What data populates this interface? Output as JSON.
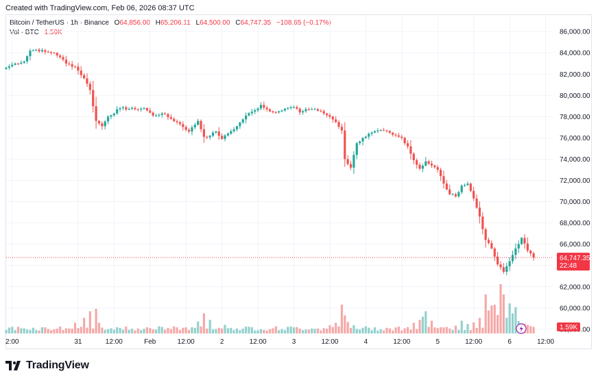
{
  "header": {
    "created_text": "Created with TradingView.com, Feb 06, 2026 08:37 UTC"
  },
  "legend": {
    "symbol": "Bitcoin / TetherUS · 1h · Binance",
    "o_label": "O",
    "o_value": "64,856.00",
    "h_label": "H",
    "h_value": "65,206.11",
    "l_label": "L",
    "l_value": "64,500.00",
    "c_label": "C",
    "c_value": "64,747.35",
    "change": "−108.65 (−0.17%)",
    "vol_label": "Vol · BTC",
    "vol_value": "1.59K"
  },
  "price_tag": {
    "value": "64,747.35",
    "countdown": "22:48"
  },
  "volume_tag": "1.59K",
  "brand": {
    "name": "TradingView"
  },
  "colors": {
    "up": "#26a69a",
    "down": "#ef5350",
    "vol_up": "#93d1cc",
    "vol_down": "#f5a9a8",
    "grid": "#f0f3fa",
    "price_line": "#f23645"
  },
  "chart_data": {
    "type": "candlestick",
    "title": "Bitcoin / TetherUS · 1h · Binance",
    "ylim": [
      59000,
      87000
    ],
    "y_ticks": [
      "86,000.00",
      "84,000.00",
      "82,000.00",
      "80,000.00",
      "78,000.00",
      "76,000.00",
      "74,000.00",
      "72,000.00",
      "70,000.00",
      "68,000.00",
      "66,000.00",
      "64,000.00",
      "62,000.00",
      "60,000.00",
      "58,000.00"
    ],
    "y_tick_values": [
      86000,
      84000,
      82000,
      80000,
      78000,
      76000,
      74000,
      72000,
      70000,
      68000,
      66000,
      64000,
      62000,
      60000,
      58000
    ],
    "x_ticks": [
      "2:00",
      "31",
      "12:00",
      "Feb",
      "12:00",
      "2",
      "12:00",
      "3",
      "12:00",
      "4",
      "12:00",
      "5",
      "12:00",
      "6",
      "12:00"
    ],
    "x_tick_hours": [
      2,
      24,
      36,
      48,
      60,
      72,
      84,
      96,
      108,
      120,
      132,
      144,
      156,
      168,
      180
    ],
    "last_price": 64747.35,
    "start": "Jan 30 00:00",
    "anchors": [
      [
        0,
        82600
      ],
      [
        3,
        83000
      ],
      [
        6,
        83200
      ],
      [
        8,
        84200
      ],
      [
        10,
        84300
      ],
      [
        13,
        84100
      ],
      [
        16,
        84000
      ],
      [
        18,
        83600
      ],
      [
        20,
        83000
      ],
      [
        23,
        82700
      ],
      [
        26,
        81600
      ],
      [
        28,
        80500
      ],
      [
        30,
        77600
      ],
      [
        32,
        77100
      ],
      [
        34,
        78000
      ],
      [
        38,
        78800
      ],
      [
        43,
        78700
      ],
      [
        46,
        78800
      ],
      [
        49,
        78100
      ],
      [
        52,
        78300
      ],
      [
        55,
        77800
      ],
      [
        58,
        77300
      ],
      [
        61,
        76600
      ],
      [
        64,
        77600
      ],
      [
        66,
        76100
      ],
      [
        68,
        76200
      ],
      [
        70,
        76600
      ],
      [
        72,
        75900
      ],
      [
        74,
        76400
      ],
      [
        77,
        77100
      ],
      [
        80,
        78100
      ],
      [
        83,
        78600
      ],
      [
        85,
        79100
      ],
      [
        88,
        78500
      ],
      [
        91,
        78500
      ],
      [
        94,
        78800
      ],
      [
        96,
        78900
      ],
      [
        98,
        78400
      ],
      [
        100,
        78700
      ],
      [
        103,
        78700
      ],
      [
        106,
        78300
      ],
      [
        108,
        78000
      ],
      [
        110,
        77500
      ],
      [
        112,
        76700
      ],
      [
        113,
        74000
      ],
      [
        115,
        73200
      ],
      [
        117,
        75500
      ],
      [
        119,
        76000
      ],
      [
        122,
        76500
      ],
      [
        126,
        76700
      ],
      [
        129,
        76300
      ],
      [
        132,
        76000
      ],
      [
        134,
        75200
      ],
      [
        136,
        73900
      ],
      [
        138,
        73100
      ],
      [
        140,
        73800
      ],
      [
        142,
        73400
      ],
      [
        144,
        73000
      ],
      [
        146,
        71700
      ],
      [
        148,
        70700
      ],
      [
        150,
        70500
      ],
      [
        152,
        71500
      ],
      [
        154,
        71700
      ],
      [
        156,
        70300
      ],
      [
        158,
        68600
      ],
      [
        160,
        66400
      ],
      [
        162,
        65600
      ],
      [
        164,
        64100
      ],
      [
        166,
        63400
      ],
      [
        168,
        64400
      ],
      [
        170,
        65600
      ],
      [
        172,
        66600
      ],
      [
        174,
        65400
      ],
      [
        176,
        64700
      ]
    ],
    "volume_spikes": [
      [
        23,
        2.6
      ],
      [
        26,
        3.8
      ],
      [
        28,
        5.4
      ],
      [
        30,
        6.0
      ],
      [
        31,
        2.6
      ],
      [
        60,
        1.5
      ],
      [
        64,
        2.9
      ],
      [
        66,
        4.9
      ],
      [
        68,
        3.3
      ],
      [
        73,
        2.1
      ],
      [
        108,
        2.0
      ],
      [
        110,
        2.6
      ],
      [
        112,
        7.0
      ],
      [
        113,
        4.4
      ],
      [
        114,
        2.8
      ],
      [
        116,
        2.0
      ],
      [
        136,
        2.6
      ],
      [
        138,
        3.3
      ],
      [
        139,
        4.1
      ],
      [
        140,
        5.4
      ],
      [
        142,
        3.1
      ],
      [
        150,
        1.9
      ],
      [
        152,
        3.1
      ],
      [
        154,
        2.3
      ],
      [
        156,
        2.7
      ],
      [
        158,
        3.8
      ],
      [
        160,
        9.5
      ],
      [
        161,
        5.6
      ],
      [
        162,
        6.8
      ],
      [
        163,
        7.0
      ],
      [
        164,
        4.5
      ],
      [
        165,
        12.0
      ],
      [
        166,
        9.5
      ],
      [
        167,
        3.8
      ],
      [
        168,
        7.3
      ],
      [
        169,
        4.9
      ],
      [
        170,
        6.4
      ],
      [
        171,
        3.0
      ],
      [
        172,
        2.5
      ],
      [
        173,
        2.4
      ],
      [
        174,
        2.1
      ],
      [
        175,
        1.8
      ],
      [
        176,
        1.6
      ]
    ]
  }
}
